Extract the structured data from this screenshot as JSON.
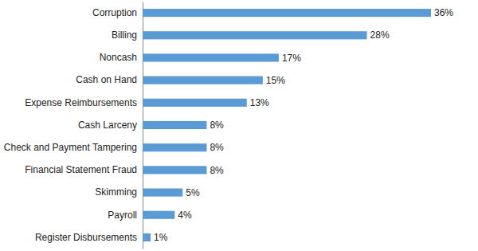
{
  "chart_data": {
    "type": "bar",
    "orientation": "horizontal",
    "categories": [
      "Corruption",
      "Billing",
      "Noncash",
      "Cash on Hand",
      "Expense Reimbursements",
      "Cash Larceny",
      "Check and Payment Tampering",
      "Financial Statement Fraud",
      "Skimming",
      "Payroll",
      "Register Disbursements"
    ],
    "values": [
      36,
      28,
      17,
      15,
      13,
      8,
      8,
      8,
      5,
      4,
      1
    ],
    "value_labels": [
      "36%",
      "28%",
      "17%",
      "15%",
      "13%",
      "8%",
      "8%",
      "8%",
      "5%",
      "4%",
      "1%"
    ],
    "color": "#5b9bd5",
    "xlim": [
      0,
      36
    ],
    "data_labels": true,
    "tick_labels": "y"
  }
}
